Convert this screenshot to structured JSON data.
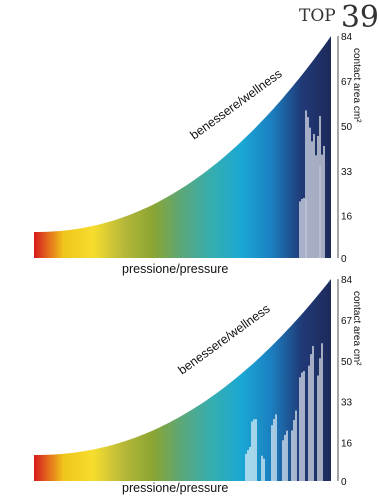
{
  "header": {
    "brand_top": "TOP",
    "brand_number": "39"
  },
  "colors": {
    "gradient": [
      "#d7191c",
      "#f0c61b",
      "#f6dd2e",
      "#b8b83a",
      "#8aa532",
      "#5aa77c",
      "#35aeb0",
      "#1aa7d4",
      "#1b7fc0",
      "#203a78",
      "#1d2a5a"
    ]
  },
  "chart_data": [
    {
      "type": "area",
      "title": "",
      "xlabel": "pressione/pressure",
      "ylabel": "contact area cm²",
      "curve_label": "benessere/wellness",
      "yticks": [
        "0",
        "16",
        "33",
        "50",
        "67",
        "84"
      ],
      "ylim": [
        0,
        84
      ],
      "grid": false,
      "legend": "none"
    },
    {
      "type": "area",
      "title": "",
      "xlabel": "pressione/pressure",
      "ylabel": "contact area cm²",
      "curve_label": "benessere/wellness",
      "yticks": [
        "0",
        "16",
        "33",
        "50",
        "67",
        "84"
      ],
      "ylim": [
        0,
        84
      ],
      "grid": false,
      "legend": "none"
    }
  ]
}
